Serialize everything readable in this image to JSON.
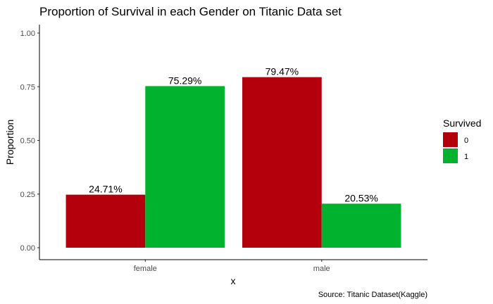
{
  "chart_data": {
    "type": "bar",
    "title": "Proportion of Survival in each Gender on Titanic Data set",
    "xlabel": "x",
    "ylabel": "Proportion",
    "caption": "Source: Titanic Dataset(Kaggle)",
    "categories": [
      "female",
      "male"
    ],
    "ylim": [
      0,
      1
    ],
    "yticks": [
      "0.00",
      "0.25",
      "0.50",
      "0.75",
      "1.00"
    ],
    "grid": false,
    "legend": {
      "title": "Survived",
      "placement": "right"
    },
    "series": [
      {
        "name": "0",
        "color": "#b3000c",
        "values": [
          0.2471,
          0.7947
        ],
        "labels": [
          "24.71%",
          "79.47%"
        ]
      },
      {
        "name": "1",
        "color": "#00b22d",
        "values": [
          0.7529,
          0.2053
        ],
        "labels": [
          "75.29%",
          "20.53%"
        ]
      }
    ]
  }
}
